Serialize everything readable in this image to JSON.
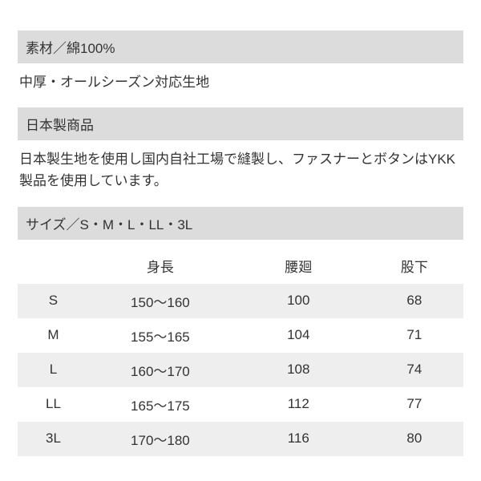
{
  "colors": {
    "header_bg": "#dcdcdc",
    "row_alt_bg": "#eeeeee",
    "text": "#333333",
    "page_bg": "#ffffff"
  },
  "typography": {
    "base_size_pt": 13,
    "line_height": 1.6,
    "font_family": "Hiragino Kaku Gothic ProN"
  },
  "sections": [
    {
      "header": "素材／綿100%",
      "body": "中厚・オールシーズン対応生地"
    },
    {
      "header": "日本製商品",
      "body": "日本製生地を使用し国内自社工場で縫製し、ファスナーとボタンはYKK製品を使用しています。"
    },
    {
      "header": "サイズ／S・M・L・LL・3L"
    }
  ],
  "size_table": {
    "type": "table",
    "columns": [
      "",
      "身長",
      "腰廻",
      "股下"
    ],
    "col_widths_pct": [
      16,
      32,
      30,
      22
    ],
    "rows": [
      [
        "S",
        "150～160",
        "100",
        "68"
      ],
      [
        "M",
        "155～165",
        "104",
        "71"
      ],
      [
        "L",
        "160～170",
        "108",
        "74"
      ],
      [
        "LL",
        "165～175",
        "112",
        "77"
      ],
      [
        "3L",
        "170～180",
        "116",
        "80"
      ]
    ]
  }
}
